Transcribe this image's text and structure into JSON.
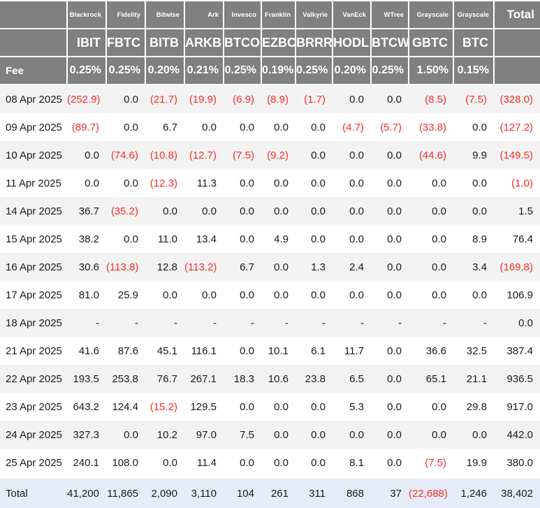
{
  "colors": {
    "header_bg": "#808080",
    "header_text": "#ffffff",
    "row_stripe": "#f2f2f2",
    "row_plain": "#ffffff",
    "total_row_bg": "#e6ecf7",
    "negative_text": "#fa2d28",
    "body_text": "#1a1a1a"
  },
  "chart_data": {
    "type": "table",
    "columns_providers": [
      "Blackrock",
      "Fidelity",
      "Bitwise",
      "Ark",
      "Invesco",
      "Franklin",
      "Valkyrie",
      "VanEck",
      "WTree",
      "Grayscale",
      "Grayscale"
    ],
    "columns_tickers": [
      "IBIT",
      "FBTC",
      "BITB",
      "ARKB",
      "BTCO",
      "EZBC",
      "BRRR",
      "HODL",
      "BTCW",
      "GBTC",
      "BTC"
    ],
    "total_column_label": "Total",
    "fee_row_label": "Fee",
    "fees": [
      "0.25%",
      "0.25%",
      "0.20%",
      "0.21%",
      "0.25%",
      "0.19%",
      "0.25%",
      "0.20%",
      "0.25%",
      "1.50%",
      "0.15%"
    ],
    "rows": [
      {
        "date": "08 Apr 2025",
        "values": [
          "(252.9)",
          "0.0",
          "(21.7)",
          "(19.9)",
          "(6.9)",
          "(8.9)",
          "(1.7)",
          "0.0",
          "0.0",
          "(8.5)",
          "(7.5)"
        ],
        "total": "(328.0)"
      },
      {
        "date": "09 Apr 2025",
        "values": [
          "(89.7)",
          "0.0",
          "6.7",
          "0.0",
          "0.0",
          "0.0",
          "0.0",
          "(4.7)",
          "(5.7)",
          "(33.8)",
          "0.0"
        ],
        "total": "(127.2)"
      },
      {
        "date": "10 Apr 2025",
        "values": [
          "0.0",
          "(74.6)",
          "(10.8)",
          "(12.7)",
          "(7.5)",
          "(9.2)",
          "0.0",
          "0.0",
          "0.0",
          "(44.6)",
          "9.9"
        ],
        "total": "(149.5)"
      },
      {
        "date": "11 Apr 2025",
        "values": [
          "0.0",
          "0.0",
          "(12.3)",
          "11.3",
          "0.0",
          "0.0",
          "0.0",
          "0.0",
          "0.0",
          "0.0",
          "0.0"
        ],
        "total": "(1.0)"
      },
      {
        "date": "14 Apr 2025",
        "values": [
          "36.7",
          "(35.2)",
          "0.0",
          "0.0",
          "0.0",
          "0.0",
          "0.0",
          "0.0",
          "0.0",
          "0.0",
          "0.0"
        ],
        "total": "1.5"
      },
      {
        "date": "15 Apr 2025",
        "values": [
          "38.2",
          "0.0",
          "11.0",
          "13.4",
          "0.0",
          "4.9",
          "0.0",
          "0.0",
          "0.0",
          "0.0",
          "8.9"
        ],
        "total": "76.4"
      },
      {
        "date": "16 Apr 2025",
        "values": [
          "30.6",
          "(113.8)",
          "12.8",
          "(113.2)",
          "6.7",
          "0.0",
          "1.3",
          "2.4",
          "0.0",
          "0.0",
          "3.4"
        ],
        "total": "(169.8)"
      },
      {
        "date": "17 Apr 2025",
        "values": [
          "81.0",
          "25.9",
          "0.0",
          "0.0",
          "0.0",
          "0.0",
          "0.0",
          "0.0",
          "0.0",
          "0.0",
          "0.0"
        ],
        "total": "106.9"
      },
      {
        "date": "18 Apr 2025",
        "values": [
          "-",
          "-",
          "-",
          "-",
          "-",
          "-",
          "-",
          "-",
          "-",
          "-",
          "-"
        ],
        "total": "0.0"
      },
      {
        "date": "21 Apr 2025",
        "values": [
          "41.6",
          "87.6",
          "45.1",
          "116.1",
          "0.0",
          "10.1",
          "6.1",
          "11.7",
          "0.0",
          "36.6",
          "32.5"
        ],
        "total": "387.4"
      },
      {
        "date": "22 Apr 2025",
        "values": [
          "193.5",
          "253.8",
          "76.7",
          "267.1",
          "18.3",
          "10.6",
          "23.8",
          "6.5",
          "0.0",
          "65.1",
          "21.1"
        ],
        "total": "936.5"
      },
      {
        "date": "23 Apr 2025",
        "values": [
          "643.2",
          "124.4",
          "(15.2)",
          "129.5",
          "0.0",
          "0.0",
          "0.0",
          "5.3",
          "0.0",
          "0.0",
          "29.8"
        ],
        "total": "917.0"
      },
      {
        "date": "24 Apr 2025",
        "values": [
          "327.3",
          "0.0",
          "10.2",
          "97.0",
          "7.5",
          "0.0",
          "0.0",
          "0.0",
          "0.0",
          "0.0",
          "0.0"
        ],
        "total": "442.0"
      },
      {
        "date": "25 Apr 2025",
        "values": [
          "240.1",
          "108.0",
          "0.0",
          "11.4",
          "0.0",
          "0.0",
          "0.0",
          "8.1",
          "0.0",
          "(7.5)",
          "19.9"
        ],
        "total": "380.0"
      }
    ],
    "total_row": {
      "label": "Total",
      "values": [
        "41,200",
        "11,865",
        "2,090",
        "3,110",
        "104",
        "261",
        "311",
        "868",
        "37",
        "(22,688)",
        "1,246"
      ],
      "total": "38,402"
    }
  }
}
